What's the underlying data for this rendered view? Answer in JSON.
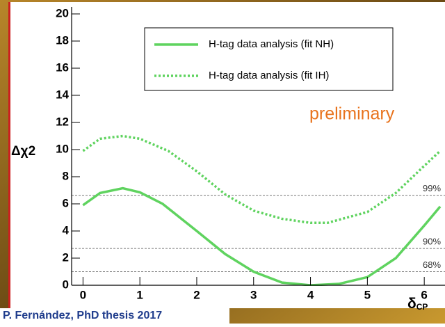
{
  "chart_data": {
    "type": "line",
    "x_label": {
      "symbol": "δ",
      "subscript": "CP"
    },
    "y_label": "Δχ2",
    "annotation": "preliminary",
    "credit": "P. Fernández, PhD thesis 2017",
    "xlim": [
      -0.2,
      6.5
    ],
    "ylim": [
      0,
      20
    ],
    "xticks": [
      0,
      1,
      2,
      3,
      4,
      5,
      6
    ],
    "yticks": [
      0,
      2,
      4,
      6,
      8,
      10,
      12,
      14,
      16,
      18,
      20
    ],
    "series": [
      {
        "name": "H-tag data analysis (fit NH)",
        "color": "#5fd35f",
        "style": "solid",
        "x": [
          0,
          0.3,
          0.7,
          1.0,
          1.4,
          2.0,
          2.5,
          3.0,
          3.5,
          4.0,
          4.5,
          5.0,
          5.5,
          6.0,
          6.28
        ],
        "values": [
          5.9,
          6.8,
          7.15,
          6.85,
          6.0,
          4.0,
          2.3,
          1.0,
          0.2,
          0.0,
          0.1,
          0.6,
          2.0,
          4.4,
          5.8
        ]
      },
      {
        "name": "H-tag data analysis (fit IH)",
        "color": "#5fd35f",
        "style": "dotted",
        "x": [
          0,
          0.3,
          0.7,
          1.0,
          1.5,
          2.0,
          2.5,
          3.0,
          3.5,
          4.0,
          4.3,
          5.0,
          5.5,
          6.0,
          6.28
        ],
        "values": [
          9.9,
          10.8,
          11.0,
          10.8,
          9.9,
          8.4,
          6.7,
          5.5,
          4.9,
          4.6,
          4.6,
          5.4,
          6.8,
          8.8,
          9.9
        ]
      }
    ],
    "reference_lines": [
      {
        "value": 6.63,
        "label": "99%"
      },
      {
        "value": 2.71,
        "label": "90%"
      },
      {
        "value": 1.0,
        "label": "68%"
      }
    ]
  }
}
